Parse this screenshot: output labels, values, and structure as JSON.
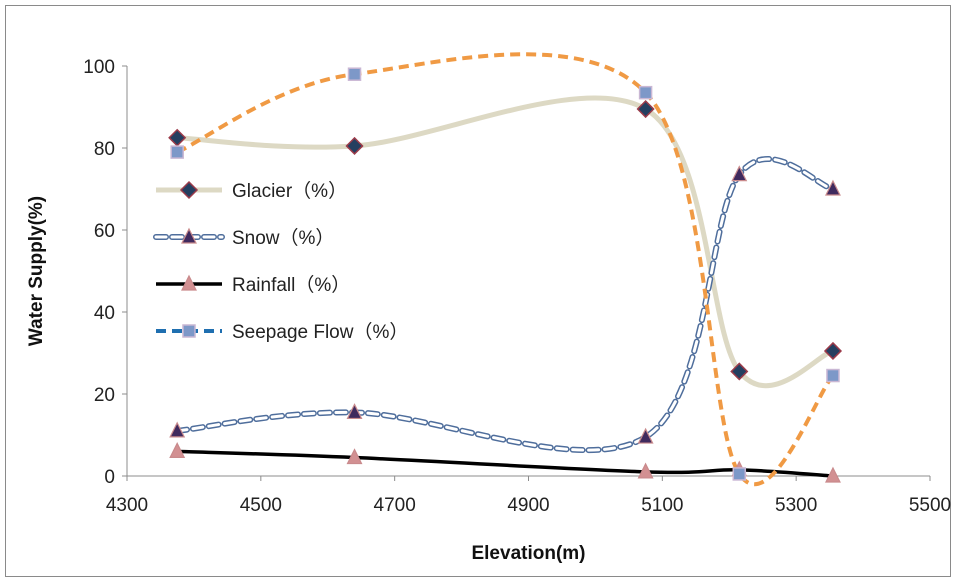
{
  "chart_data": {
    "type": "line",
    "title": "",
    "xlabel": "Elevation(m)",
    "ylabel": "Water Supply(%)",
    "xlim": [
      4300,
      5500
    ],
    "ylim": [
      0,
      100
    ],
    "x_ticks": [
      "4300",
      "4500",
      "4700",
      "4900",
      "5100",
      "5300",
      "5500"
    ],
    "y_ticks": [
      "0",
      "20",
      "40",
      "60",
      "80",
      "100"
    ],
    "grid": false,
    "legend_position": "left",
    "series": [
      {
        "name": "Glacier（%）",
        "color": "#ddd9c4",
        "marker": "diamond",
        "marker_color": "#243f60",
        "line_style": "solid",
        "x": [
          4375,
          4640,
          5075,
          5215,
          5355
        ],
        "y": [
          82.5,
          80.5,
          89.5,
          25.5,
          30.5
        ]
      },
      {
        "name": "Snow（%）",
        "color": "#4f6e9c",
        "marker": "triangle",
        "marker_color": "#3f2a5e",
        "line_style": "double-dashed",
        "x": [
          4375,
          4640,
          5075,
          5215,
          5355
        ],
        "y": [
          11,
          15.5,
          9.5,
          73.5,
          70
        ]
      },
      {
        "name": "Rainfall（%）",
        "color": "#000000",
        "marker": "triangle",
        "marker_color": "#d29092",
        "line_style": "solid",
        "x": [
          4375,
          4640,
          5075,
          5215,
          5355
        ],
        "y": [
          6,
          4.5,
          1,
          1.5,
          0
        ]
      },
      {
        "name": "Seepage Flow（%）",
        "color": "#f09a44",
        "marker": "square",
        "marker_color": "#7d98c8",
        "line_style": "dashed",
        "legend_line_color": "#1f6fb0",
        "x": [
          4375,
          4640,
          5075,
          5215,
          5355
        ],
        "y": [
          79,
          98,
          93.5,
          0.5,
          24.5
        ]
      }
    ]
  }
}
